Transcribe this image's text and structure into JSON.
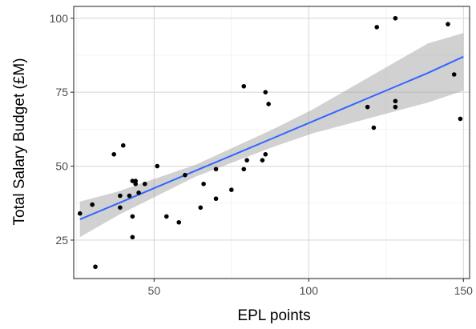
{
  "chart_data": {
    "type": "scatter",
    "title": "",
    "xlabel": "EPL points",
    "ylabel": "Total Salary Budget (£M)",
    "xlim": [
      24,
      152
    ],
    "ylim": [
      12,
      104
    ],
    "x_ticks": [
      50,
      100,
      150
    ],
    "y_ticks": [
      25,
      50,
      75,
      100
    ],
    "x_tick_labels": [
      "50",
      "100",
      "150"
    ],
    "y_tick_labels": [
      "25",
      "50",
      "75",
      "100"
    ],
    "grid": true,
    "legend": "none",
    "colors": {
      "panel_bg": "#ffffff",
      "panel_border": "#333333",
      "grid_major": "#d9d9d9",
      "grid_minor": "#ebebeb",
      "points": "#000000",
      "fit_line": "#3366ff",
      "ribbon": "#999999"
    },
    "points": [
      {
        "x": 26,
        "y": 34
      },
      {
        "x": 30,
        "y": 37
      },
      {
        "x": 31,
        "y": 16
      },
      {
        "x": 37,
        "y": 54
      },
      {
        "x": 39,
        "y": 40
      },
      {
        "x": 39,
        "y": 36
      },
      {
        "x": 40,
        "y": 57
      },
      {
        "x": 42,
        "y": 40
      },
      {
        "x": 43,
        "y": 45
      },
      {
        "x": 43,
        "y": 33
      },
      {
        "x": 43,
        "y": 26
      },
      {
        "x": 44,
        "y": 45
      },
      {
        "x": 44,
        "y": 44
      },
      {
        "x": 45,
        "y": 41
      },
      {
        "x": 47,
        "y": 44
      },
      {
        "x": 51,
        "y": 50
      },
      {
        "x": 54,
        "y": 33
      },
      {
        "x": 58,
        "y": 31
      },
      {
        "x": 60,
        "y": 47
      },
      {
        "x": 65,
        "y": 36
      },
      {
        "x": 66,
        "y": 44
      },
      {
        "x": 70,
        "y": 39
      },
      {
        "x": 70,
        "y": 49
      },
      {
        "x": 75,
        "y": 42
      },
      {
        "x": 79,
        "y": 49
      },
      {
        "x": 79,
        "y": 77
      },
      {
        "x": 80,
        "y": 52
      },
      {
        "x": 85,
        "y": 52
      },
      {
        "x": 86,
        "y": 54
      },
      {
        "x": 86,
        "y": 75
      },
      {
        "x": 87,
        "y": 71
      },
      {
        "x": 119,
        "y": 70
      },
      {
        "x": 121,
        "y": 63
      },
      {
        "x": 122,
        "y": 97
      },
      {
        "x": 128,
        "y": 70
      },
      {
        "x": 128,
        "y": 100
      },
      {
        "x": 128,
        "y": 72
      },
      {
        "x": 145,
        "y": 98
      },
      {
        "x": 147,
        "y": 81
      },
      {
        "x": 149,
        "y": 66
      }
    ],
    "fit_line": {
      "method": "lm",
      "x": [
        26,
        38.5,
        51,
        63.5,
        76,
        88.5,
        101,
        113.5,
        126,
        138.5,
        150
      ],
      "y": [
        32,
        37.5,
        43,
        48.5,
        54,
        59.5,
        65,
        70.5,
        76,
        81.5,
        87
      ],
      "ci_low": [
        26,
        33.5,
        40,
        46.5,
        51.5,
        56.5,
        61,
        64.5,
        68,
        71.5,
        75.5
      ],
      "ci_high": [
        38,
        41.5,
        46,
        50.5,
        56.5,
        62.5,
        69,
        76.5,
        84,
        91.5,
        95
      ]
    }
  }
}
